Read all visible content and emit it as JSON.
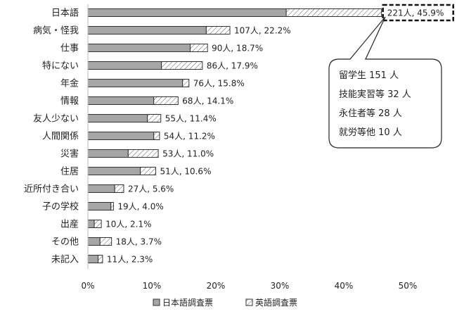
{
  "chart_data": {
    "type": "bar",
    "orientation": "horizontal",
    "stacked": true,
    "categories": [
      "日本語",
      "病気・怪我",
      "仕事",
      "特にない",
      "年金",
      "情報",
      "友人少ない",
      "人間関係",
      "災害",
      "住居",
      "近所付き合い",
      "子の学校",
      "出産",
      "その他",
      "未記入"
    ],
    "series": [
      {
        "name": "日本語調査票",
        "values": [
          31.0,
          18.5,
          16.0,
          11.5,
          14.8,
          10.3,
          9.3,
          10.3,
          6.3,
          8.2,
          4.2,
          3.6,
          1.0,
          1.9,
          1.6
        ],
        "color": "#a6a6a6"
      },
      {
        "name": "英語調査票",
        "values": [
          14.9,
          3.7,
          2.7,
          6.4,
          1.0,
          3.8,
          2.1,
          0.9,
          4.7,
          2.4,
          1.4,
          0.4,
          1.1,
          1.8,
          0.7
        ],
        "color": "#ffffff",
        "pattern": "hatch"
      }
    ],
    "data_labels": [
      "221人, 45.9%",
      "107人, 22.2%",
      "90人, 18.7%",
      "86人, 17.9%",
      "76人, 15.8%",
      "68人, 14.1%",
      "55人, 11.4%",
      "54人, 11.2%",
      "53人, 11.0%",
      "51人, 10.6%",
      "27人, 5.6%",
      "19人, 4.0%",
      "10人, 2.1%",
      "18人, 3.7%",
      "11人, 2.3%"
    ],
    "xlim": [
      0,
      55
    ],
    "x_ticks": [
      0,
      10,
      20,
      30,
      40,
      50
    ],
    "x_tick_labels": [
      "0%",
      "10%",
      "20%",
      "30%",
      "40%",
      "50%"
    ],
    "legend": {
      "position": "bottom",
      "entries": [
        "日本語調査票",
        "英語調査票"
      ]
    },
    "highlight_index": 0,
    "callout": {
      "lines": [
        "留学生 151 人",
        "技能実習等 32 人",
        "永住者等 28 人",
        "就労等他 10 人"
      ]
    },
    "grid": false
  }
}
